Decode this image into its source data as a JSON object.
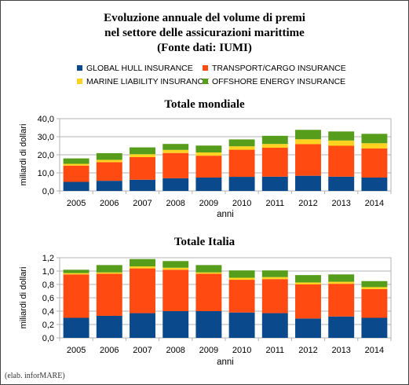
{
  "title_lines": [
    "Evoluzione annuale del volume di premi",
    "nel settore delle assicurazioni marittime",
    "(Fonte dati: IUMI)"
  ],
  "legend": [
    {
      "label": "GLOBAL HULL INSURANCE",
      "color": "#0a4a8c"
    },
    {
      "label": "TRANSPORT/CARGO INSURANCE",
      "color": "#ff4a12"
    },
    {
      "label": "MARINE LIABILITY INSURANCE",
      "color": "#ffd320"
    },
    {
      "label": "OFFSHORE ENERGY INSURANCE",
      "color": "#579d1c"
    }
  ],
  "credit": "(elab. inforMARE)",
  "chart_data": [
    {
      "type": "bar",
      "stacked": true,
      "title": "Totale mondiale",
      "xlabel": "anni",
      "ylabel": "miliardi di dollari",
      "ylim": [
        0,
        40
      ],
      "yticks": [
        "0,0",
        "10,0",
        "20,0",
        "30,0",
        "40,0"
      ],
      "grid": true,
      "categories": [
        "2005",
        "2006",
        "2007",
        "2008",
        "2009",
        "2010",
        "2011",
        "2012",
        "2013",
        "2014"
      ],
      "series": [
        {
          "name": "GLOBAL HULL INSURANCE",
          "values": [
            5.0,
            5.6,
            6.2,
            7.0,
            7.4,
            7.8,
            7.9,
            8.4,
            7.9,
            7.4
          ]
        },
        {
          "name": "TRANSPORT/CARGO INSURANCE",
          "values": [
            9.0,
            10.3,
            12.5,
            14.0,
            12.1,
            15.0,
            16.0,
            17.5,
            17.1,
            16.1
          ]
        },
        {
          "name": "MARINE LIABILITY INSURANCE",
          "values": [
            1.0,
            1.3,
            1.6,
            1.7,
            1.8,
            1.9,
            2.1,
            2.7,
            2.9,
            2.9
          ]
        },
        {
          "name": "OFFSHORE ENERGY INSURANCE",
          "values": [
            3.0,
            3.7,
            3.8,
            3.3,
            3.8,
            3.8,
            4.5,
            5.2,
            5.0,
            5.2
          ]
        }
      ]
    },
    {
      "type": "bar",
      "stacked": true,
      "title": "Totale Italia",
      "xlabel": "anni",
      "ylabel": "miliardi di dollari",
      "ylim": [
        0,
        1.2
      ],
      "yticks": [
        "0,0",
        "0,2",
        "0,4",
        "0,6",
        "0,8",
        "1,0",
        "1,2"
      ],
      "grid": true,
      "categories": [
        "2005",
        "2006",
        "2007",
        "2008",
        "2009",
        "2010",
        "2011",
        "2012",
        "2013",
        "2014"
      ],
      "series": [
        {
          "name": "GLOBAL HULL INSURANCE",
          "values": [
            0.3,
            0.33,
            0.37,
            0.4,
            0.4,
            0.38,
            0.37,
            0.29,
            0.32,
            0.3
          ]
        },
        {
          "name": "TRANSPORT/CARGO INSURANCE",
          "values": [
            0.65,
            0.63,
            0.67,
            0.62,
            0.56,
            0.49,
            0.51,
            0.51,
            0.49,
            0.43
          ]
        },
        {
          "name": "MARINE LIABILITY INSURANCE",
          "values": [
            0.02,
            0.02,
            0.03,
            0.03,
            0.02,
            0.03,
            0.03,
            0.03,
            0.03,
            0.03
          ]
        },
        {
          "name": "OFFSHORE ENERGY INSURANCE",
          "values": [
            0.05,
            0.11,
            0.11,
            0.1,
            0.11,
            0.11,
            0.1,
            0.11,
            0.11,
            0.09
          ]
        }
      ]
    }
  ]
}
